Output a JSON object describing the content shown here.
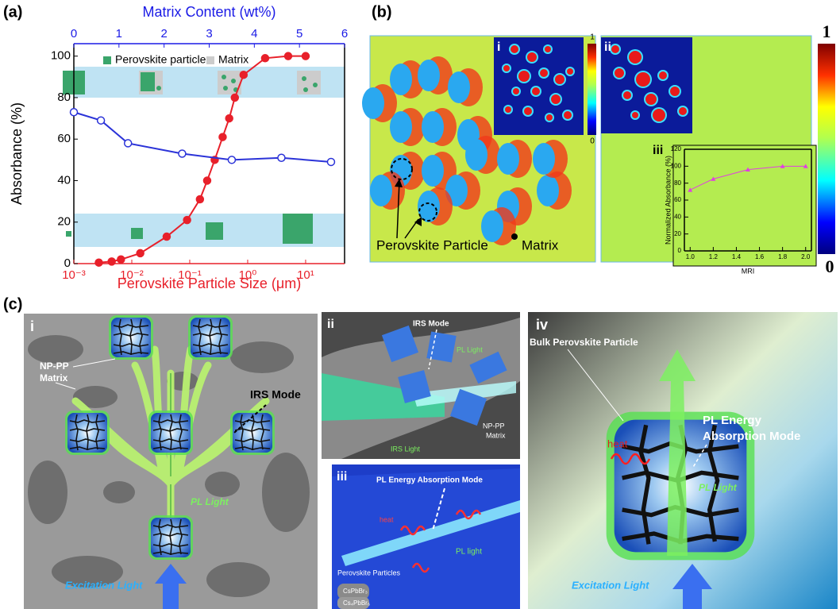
{
  "chart_data": [
    {
      "type": "line",
      "panel_label": "(a)",
      "xlabel": "Perovskite Particle Size (μm)",
      "x2label": "Matrix Content (wt%)",
      "ylabel": "Absorbance (%)",
      "xscale": "log",
      "xlim": [
        0.001,
        47
      ],
      "xticks": [
        {
          "value": 0.001,
          "label": "10⁻³"
        },
        {
          "value": 0.01,
          "label": "10⁻²"
        },
        {
          "value": 0.1,
          "label": "10⁻¹"
        },
        {
          "value": 1,
          "label": "10⁰"
        },
        {
          "value": 10,
          "label": "10¹"
        }
      ],
      "x2lim": [
        0,
        6
      ],
      "x2ticks": [
        0,
        1,
        2,
        3,
        4,
        5,
        6
      ],
      "ylim": [
        0,
        106
      ],
      "yticks": [
        0,
        20,
        40,
        60,
        80,
        100
      ],
      "x_axis_color": "#e8202a",
      "x2_axis_color": "#1a1ae6",
      "legend_items": [
        {
          "name": "Perovskite particle",
          "color": "#3aa56b"
        },
        {
          "name": "Matrix",
          "color": "#cccccc"
        }
      ],
      "series": [
        {
          "color": "#e8202a",
          "marker": "filled",
          "x": [
            0.0027,
            0.0045,
            0.0065,
            0.014,
            0.04,
            0.09,
            0.15,
            0.2,
            0.27,
            0.37,
            0.48,
            0.6,
            0.85,
            2,
            5,
            10
          ],
          "values": [
            0.5,
            1,
            2,
            5,
            13,
            21,
            31,
            40,
            50,
            61,
            70,
            80,
            91,
            99,
            100,
            100
          ]
        },
        {
          "color": "#2b33d8",
          "marker": "open",
          "axis": "x2",
          "x": [
            0,
            0.6,
            1.2,
            2.4,
            3.5,
            4.6,
            5.7
          ],
          "values": [
            73,
            69,
            58,
            53,
            50,
            51,
            49
          ]
        }
      ]
    },
    {
      "type": "line",
      "panel_label": "iii",
      "xlabel": "MRI",
      "ylabel": "Normalized Absorbance (%)",
      "xlim": [
        0.95,
        2.05
      ],
      "xticks": [
        {
          "value": 1,
          "label": "1.0"
        },
        1.2,
        1.4,
        1.6,
        1.8,
        {
          "value": 2,
          "label": "2.0"
        }
      ],
      "ylim": [
        0,
        120
      ],
      "yticks": [
        0,
        20,
        40,
        60,
        80,
        100,
        120
      ],
      "series": [
        {
          "color": "#e040e0",
          "marker": "triangle",
          "x": [
            1,
            1.2,
            1.5,
            1.8,
            2
          ],
          "values": [
            72,
            85,
            96,
            100,
            100
          ]
        }
      ]
    }
  ],
  "panel_b": {
    "label": "(b)",
    "inset_labels": [
      "i",
      "ii"
    ],
    "colorbar": [
      0,
      1
    ],
    "inset_colorbar": [
      0,
      1
    ],
    "annotations": [
      "Perovskite Particle",
      "Matrix"
    ]
  },
  "panel_c": {
    "label": "(c)",
    "i": {
      "label": "i",
      "matrix_label": [
        "NP-PP",
        "Matrix"
      ],
      "mode": "IRS Mode",
      "pl": "PL Light",
      "excitation": "Excitation Light"
    },
    "ii": {
      "label": "ii",
      "mode": "IRS Mode",
      "pl": "PL Light",
      "matrix_label": [
        "NP-PP",
        "Matrix"
      ],
      "irs_light": "IRS Light"
    },
    "iii": {
      "label": "iii",
      "mode": "PL Energy Absorption Mode",
      "heat": "heat",
      "pl": "PL light",
      "particles": "Perovskite Particles",
      "phases": [
        "CsPbBr₃",
        "Cs₄PbBr₆"
      ]
    },
    "iv": {
      "label": "iv",
      "particle": "Bulk Perovskite Particle",
      "mode": [
        "PL Energy",
        "Absorption Mode"
      ],
      "heat": "heat",
      "pl": "PL Light",
      "excitation": "Excitation Light"
    }
  }
}
